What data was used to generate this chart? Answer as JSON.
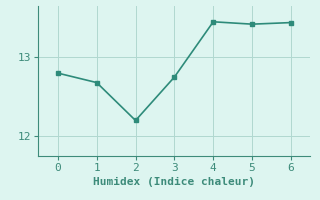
{
  "x": [
    0,
    1,
    2,
    3,
    4,
    5,
    6
  ],
  "y": [
    12.8,
    12.68,
    12.2,
    12.75,
    13.45,
    13.42,
    13.44
  ],
  "line_color": "#2e8b7a",
  "marker": "s",
  "marker_size": 3,
  "line_width": 1.2,
  "bg_color": "#ddf5f0",
  "grid_color": "#b0d8d0",
  "axis_color": "#3d8b7a",
  "xlabel": "Humidex (Indice chaleur)",
  "xlabel_fontsize": 8,
  "tick_fontsize": 8,
  "ylim": [
    11.75,
    13.65
  ],
  "xlim": [
    -0.5,
    6.5
  ],
  "yticks": [
    12,
    13
  ],
  "xticks": [
    0,
    1,
    2,
    3,
    4,
    5,
    6
  ]
}
